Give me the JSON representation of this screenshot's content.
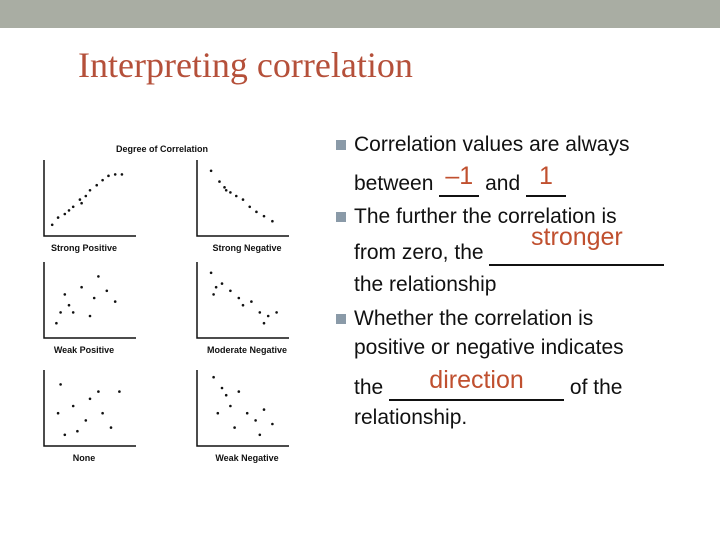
{
  "header": {
    "title": "Interpreting correlation"
  },
  "figure": {
    "title": "Degree of Correlation",
    "panels": [
      "Strong Positive",
      "Strong Negative",
      "Weak Positive",
      "Moderate Negative",
      "None",
      "Weak Negative"
    ]
  },
  "bullets": [
    [
      "Correlation values are always",
      "between",
      "–1",
      "and",
      "1"
    ],
    [
      "The further the correlation is",
      "from zero, the",
      "stronger",
      "the relationship"
    ],
    [
      "Whether the correlation is",
      "positive or negative indicates",
      "the",
      "direction",
      "of the",
      "relationship."
    ]
  ]
}
